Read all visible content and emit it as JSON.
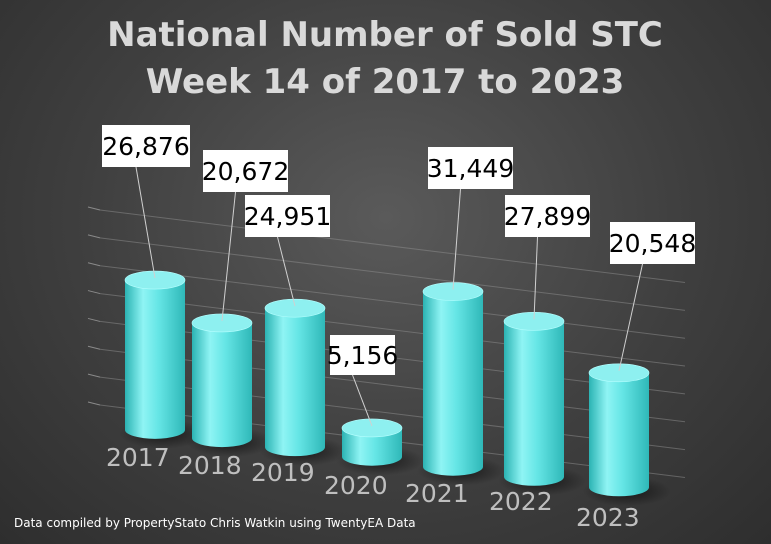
{
  "chart_data": {
    "type": "bar",
    "style": "3d-cylinder",
    "title_lines": [
      "National Number of  Sold STC",
      "Week 14 of 2017 to 2023"
    ],
    "categories": [
      "2017",
      "2018",
      "2019",
      "2020",
      "2021",
      "2022",
      "2023"
    ],
    "values": [
      26876,
      20672,
      24951,
      5156,
      31449,
      27899,
      20548
    ],
    "value_labels": [
      "26,876",
      "20,672",
      "24,951",
      "5,156",
      "31,449",
      "27,899",
      "20,548"
    ],
    "xlabel": "",
    "ylabel": "",
    "ylim": [
      0,
      35000
    ],
    "grid": true,
    "legend": "none",
    "colors": {
      "bar": "#66e6e6",
      "background": "#404040",
      "title": "#d9d9d9",
      "axis_labels": "#bfbfbf"
    }
  },
  "footer": "Data compiled by PropertyStato Chris Watkin using TwentyEA Data"
}
